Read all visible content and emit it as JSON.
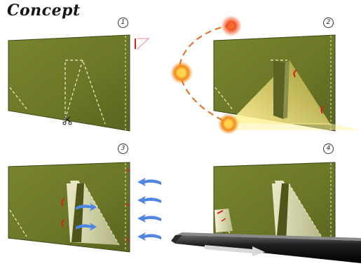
{
  "title": "Concept",
  "steps": [
    {
      "number": "1"
    },
    {
      "number": "2"
    },
    {
      "number": "3"
    },
    {
      "number": "4"
    }
  ],
  "colors": {
    "panel": "#6f7a2a",
    "panel_dark": "#4b5318",
    "light": "#ffcf3a",
    "light_core": "#e8440a",
    "wind": "#4f86e6",
    "belt": "#1d1d1d",
    "mark": "#d42020"
  },
  "icons": [
    "scissors-icon",
    "sun-icon",
    "wind-arrow-icon",
    "conveyor-arrow-icon"
  ]
}
